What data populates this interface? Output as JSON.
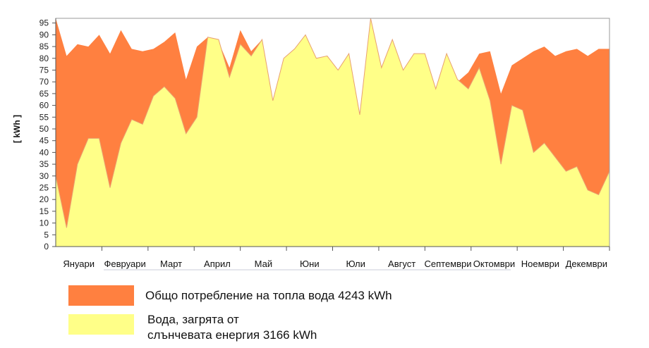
{
  "chart_data": {
    "type": "area",
    "ylabel": "[ kWh ]",
    "ylim": [
      0,
      97
    ],
    "yticks": [
      0,
      5,
      10,
      15,
      20,
      25,
      30,
      35,
      40,
      45,
      50,
      55,
      60,
      65,
      70,
      75,
      80,
      85,
      90,
      95
    ],
    "months": [
      "Януари",
      "Февруари",
      "Март",
      "Април",
      "Май",
      "Юни",
      "Юли",
      "Август",
      "Септември",
      "Октомври",
      "Ноември",
      "Декември"
    ],
    "colors": {
      "total": "#FF8040",
      "solar": "#FFFF88",
      "edge": "#E8A070"
    },
    "x": [
      0,
      1,
      2,
      3,
      4,
      5,
      6,
      7,
      8,
      9,
      10,
      11,
      12,
      13,
      14,
      15,
      16,
      17,
      18,
      19,
      20,
      21,
      22,
      23,
      24,
      25,
      26,
      27,
      28,
      29,
      30,
      31,
      32,
      33,
      34,
      35,
      36,
      37,
      38,
      39,
      40,
      41,
      42,
      43,
      44,
      45,
      46,
      47,
      48,
      49,
      50,
      51
    ],
    "series": [
      {
        "name": "Общо потребление на топла вода 4243 kWh",
        "values": [
          97,
          81,
          86,
          85,
          90,
          82,
          92,
          84,
          83,
          84,
          87,
          91,
          71,
          85,
          89,
          87,
          76,
          92,
          83,
          88,
          62,
          80,
          84,
          90,
          80,
          81,
          75,
          82,
          56,
          97,
          76,
          88,
          75,
          82,
          82,
          67,
          82,
          70,
          74,
          82,
          83,
          65,
          77,
          80,
          83,
          85,
          81,
          83,
          84,
          81,
          84,
          84
        ]
      },
      {
        "name": "Вода, загрята от слънчевата енергия 3166 kWh",
        "values": [
          30,
          8,
          35,
          46,
          46,
          25,
          44,
          54,
          52,
          64,
          68,
          63,
          48,
          55,
          89,
          88,
          72,
          86,
          81,
          88,
          62,
          80,
          84,
          90,
          80,
          81,
          75,
          82,
          56,
          97,
          76,
          88,
          75,
          82,
          82,
          67,
          82,
          71,
          67,
          76,
          62,
          35,
          60,
          58,
          40,
          44,
          38,
          32,
          34,
          24,
          22,
          32
        ]
      }
    ]
  },
  "legend": {
    "total_label": "Общо потребление на топла вода 4243 kWh",
    "solar_label_line1": "Вода, загрята от",
    "solar_label_line2": "слънчевата енергия 3166 kWh"
  }
}
